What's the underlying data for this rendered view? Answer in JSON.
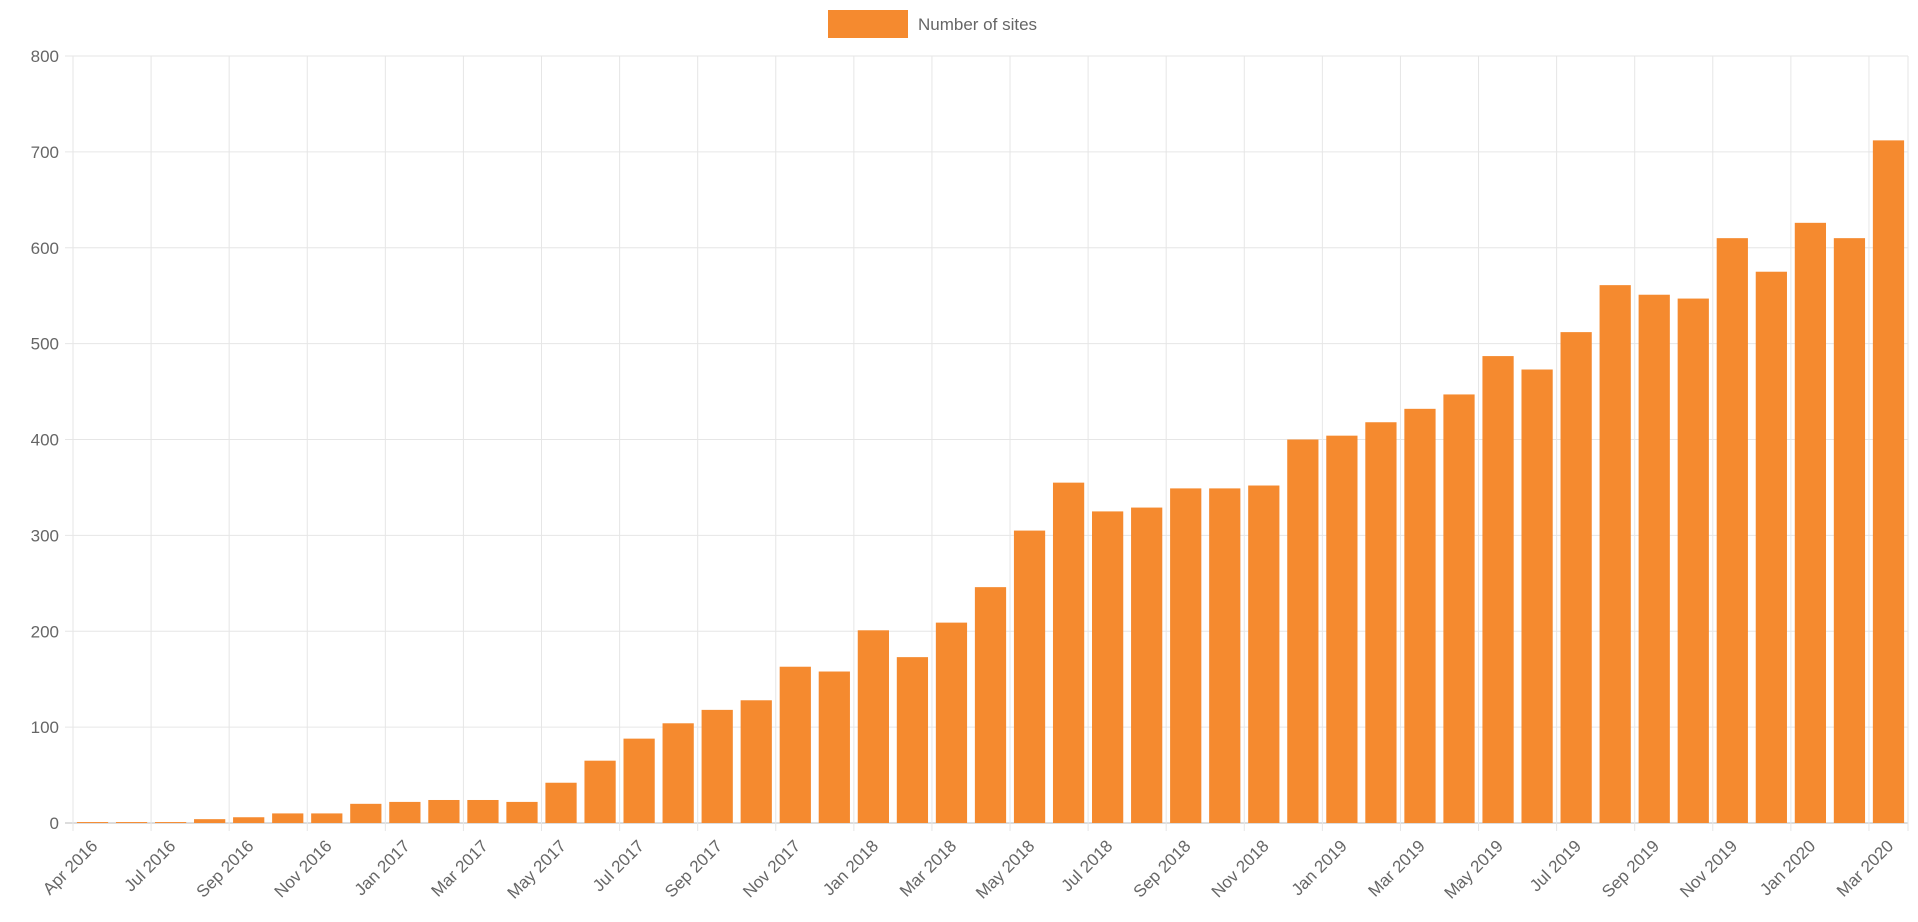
{
  "chart_data": {
    "type": "bar",
    "categories": [
      "Apr 2016",
      null,
      "Jul 2016",
      null,
      "Sep 2016",
      null,
      "Nov 2016",
      null,
      "Jan 2017",
      null,
      "Mar 2017",
      null,
      "May 2017",
      null,
      "Jul 2017",
      null,
      "Sep 2017",
      null,
      "Nov 2017",
      null,
      "Jan 2018",
      null,
      "Mar 2018",
      null,
      "May 2018",
      null,
      "Jul 2018",
      null,
      "Sep 2018",
      null,
      "Nov 2018",
      null,
      "Jan 2019",
      null,
      "Mar 2019",
      null,
      "May 2019",
      null,
      "Jul 2019",
      null,
      "Sep 2019",
      null,
      "Nov 2019",
      null,
      "Jan 2020",
      null,
      "Mar 2020"
    ],
    "series": [
      {
        "name": "Number of sites",
        "color": "#f58a2f",
        "values": [
          1,
          1,
          1,
          4,
          6,
          10,
          10,
          20,
          22,
          24,
          24,
          22,
          42,
          65,
          88,
          104,
          118,
          128,
          163,
          158,
          201,
          173,
          209,
          246,
          305,
          355,
          325,
          329,
          349,
          349,
          352,
          400,
          404,
          418,
          432,
          447,
          487,
          473,
          512,
          561,
          551,
          547,
          610,
          575,
          626,
          610,
          712
        ]
      }
    ],
    "ylim": [
      0,
      800
    ],
    "yticks": [
      0,
      100,
      200,
      300,
      400,
      500,
      600,
      700,
      800
    ],
    "grid": true,
    "legend": "top"
  }
}
